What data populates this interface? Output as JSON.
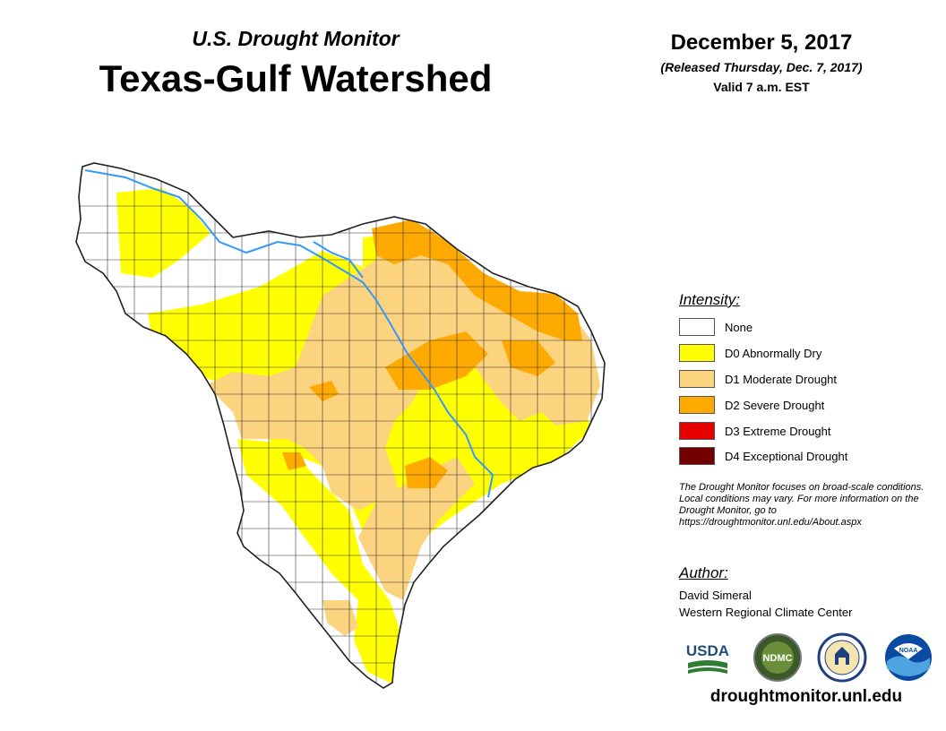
{
  "header": {
    "subtitle": "U.S. Drought Monitor",
    "title": "Texas-Gulf Watershed",
    "date": "December 5, 2017",
    "released": "(Released Thursday, Dec. 7, 2017)",
    "valid": "Valid 7 a.m. EST"
  },
  "legend": {
    "heading": "Intensity:",
    "items": [
      {
        "label": "None",
        "color": "#ffffff"
      },
      {
        "label": "D0 Abnormally Dry",
        "color": "#ffff00"
      },
      {
        "label": "D1 Moderate Drought",
        "color": "#fcd37f"
      },
      {
        "label": "D2 Severe Drought",
        "color": "#ffaa00"
      },
      {
        "label": "D3 Extreme Drought",
        "color": "#e60000"
      },
      {
        "label": "D4 Exceptional Drought",
        "color": "#730000"
      }
    ]
  },
  "note": "The Drought Monitor focuses on broad-scale conditions. Local conditions may vary. For more information on the Drought Monitor, go to https://droughtmonitor.unl.edu/About.aspx",
  "author": {
    "heading": "Author:",
    "name": "David Simeral",
    "organization": "Western Regional Climate Center"
  },
  "logos": {
    "usda": "USDA",
    "ndmc": "NDMC",
    "noaa": "NOAA"
  },
  "footer": {
    "url": "droughtmonitor.unl.edu"
  },
  "colors": {
    "river": "#3399ff",
    "county_line": "#333333"
  }
}
